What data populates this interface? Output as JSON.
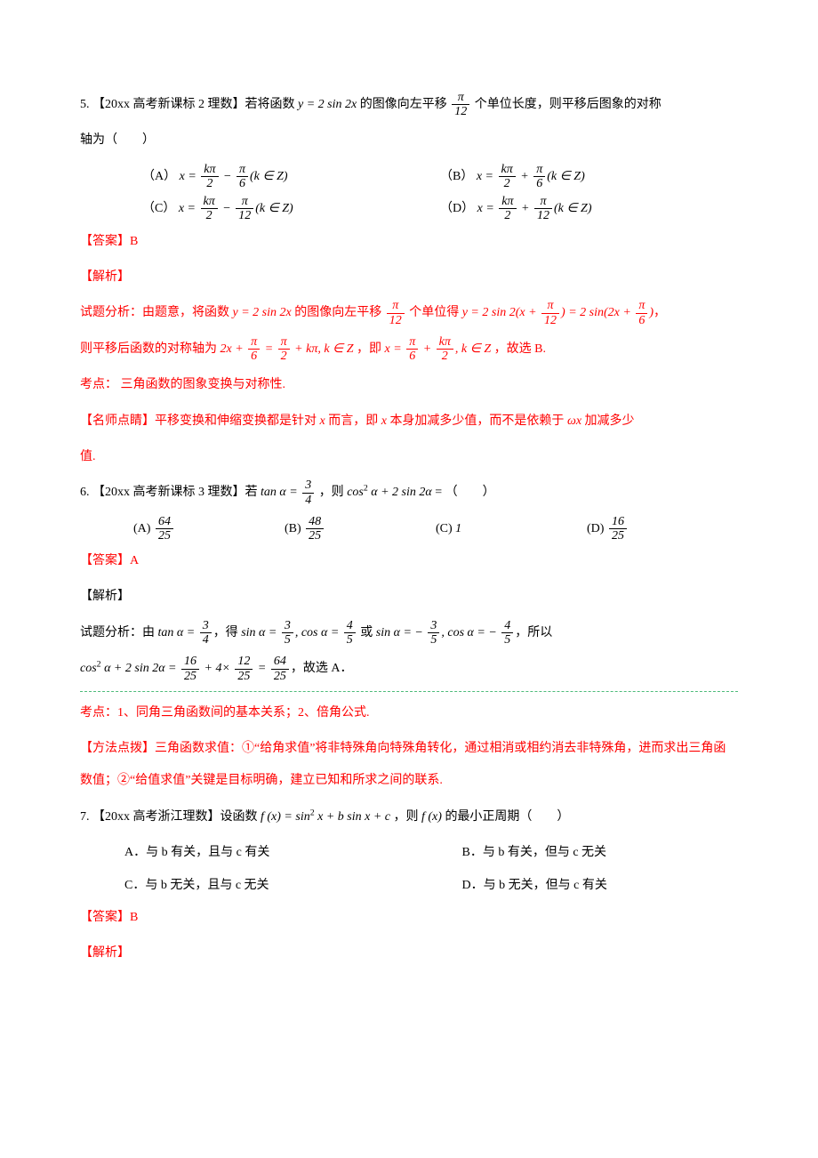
{
  "q5": {
    "source": "【20xx 高考新课标 2 理数】",
    "stem_a": "若将函数 ",
    "stem_fn": "y = 2 sin 2x",
    "stem_b": " 的图像向左平移 ",
    "stem_c": " 个单位长度，则平移后图象的对称",
    "stem_d": "轴为（　　）",
    "frac_pi_12_num": "π",
    "frac_pi_12_den": "12",
    "opts": {
      "A_label": "（A）",
      "A_math1": "x = ",
      "A_f1n": "kπ",
      "A_f1d": "2",
      "A_mid": " − ",
      "A_f2n": "π",
      "A_f2d": "6",
      "A_tail": "(k ∈ Z)",
      "B_label": "（B）",
      "B_math1": "x = ",
      "B_f1n": "kπ",
      "B_f1d": "2",
      "B_mid": " + ",
      "B_f2n": "π",
      "B_f2d": "6",
      "B_tail": "(k ∈ Z)",
      "C_label": "（C）",
      "C_math1": "x = ",
      "C_f1n": "kπ",
      "C_f1d": "2",
      "C_mid": " − ",
      "C_f2n": "π",
      "C_f2d": "12",
      "C_tail": "(k ∈ Z)",
      "D_label": "（D）",
      "D_math1": "x = ",
      "D_f1n": "kπ",
      "D_f1d": "2",
      "D_mid": " + ",
      "D_f2n": "π",
      "D_f2d": "12",
      "D_tail": "(k ∈ Z)"
    },
    "answer": "【答案】B",
    "analysis_label": "【解析】",
    "a_line1a": "试题分析：由题意，将函数 ",
    "a_fn1": "y = 2 sin 2x",
    "a_line1b": " 的图像向左平移 ",
    "a_f1n": "π",
    "a_f1d": "12",
    "a_line1c": " 个单位得 ",
    "a_fn2a": "y = 2 sin 2(x + ",
    "a_f2n": "π",
    "a_f2d": "12",
    "a_fn2b": ") = 2 sin(2x + ",
    "a_f3n": "π",
    "a_f3d": "6",
    "a_fn2c": ")",
    "a_line1d": "，",
    "a_line2a": "则平移后函数的对称轴为 ",
    "a_fn3a": "2x + ",
    "a_f4n": "π",
    "a_f4d": "6",
    "a_fn3b": " = ",
    "a_f5n": "π",
    "a_f5d": "2",
    "a_fn3c": " + kπ, k ∈ Z",
    "a_line2b": " ，即 ",
    "a_fn4a": "x = ",
    "a_f6n": "π",
    "a_f6d": "6",
    "a_fn4b": " + ",
    "a_f7n": "kπ",
    "a_f7d": "2",
    "a_fn4c": ", k ∈ Z",
    "a_line2c": " ，故选 B.",
    "point": "考点：  三角函数的图象变换与对称性.",
    "tip_a": "【名师点睛】平移变换和伸缩变换都是针对 ",
    "tip_x": "x",
    "tip_b": " 而言，即 ",
    "tip_c": " 本身加减多少值，而不是依赖于 ",
    "tip_wx": "ωx",
    "tip_d": " 加减多少",
    "tip_e": "值."
  },
  "q6": {
    "source": "【20xx 高考新课标 3 理数】",
    "stem_a": "若 ",
    "stem_fn": "tan α = ",
    "f34n": "3",
    "f34d": "4",
    "stem_b": "  ，则 ",
    "stem_c": "cos",
    "stem_sup": "2",
    "stem_d": " α + 2 sin 2α",
    "stem_e": " = （　　）",
    "opts": {
      "A_label": "(A) ",
      "A_n": "64",
      "A_d": "25",
      "B_label": "(B) ",
      "B_n": "48",
      "B_d": "25",
      "C_label": "(C) ",
      "C_val": "1",
      "D_label": "(D) ",
      "D_n": "16",
      "D_d": "25"
    },
    "answer": "【答案】A",
    "analysis_label": "【解析】",
    "a_line1_a": "试题分析：由 ",
    "a_line1_b": "tan α = ",
    "f1n": "3",
    "f1d": "4",
    "a_line1_c": "，得 ",
    "a_line1_d": "sin α = ",
    "f2n": "3",
    "f2d": "5",
    "a_line1_e": ", cos α = ",
    "f3n": "4",
    "f3d": "5",
    "a_line1_f": " 或 ",
    "a_line1_g": "sin α = − ",
    "f4n": "3",
    "f4d": "5",
    "a_line1_h": ", cos α = − ",
    "f5n": "4",
    "f5d": "5",
    "a_line1_i": "，所以",
    "a_line2_a": "cos",
    "a_sup": "2",
    "a_line2_b": " α + 2 sin 2α = ",
    "f6n": "16",
    "f6d": "25",
    "a_line2_c": " + 4× ",
    "f7n": "12",
    "f7d": "25",
    "a_line2_d": " = ",
    "f8n": "64",
    "f8d": "25",
    "a_line2_e": "，故选 A．",
    "point": "考点：1、同角三角函数间的基本关系；2、倍角公式.",
    "tip": "【方法点拨】三角函数求值：①“给角求值”将非特殊角向特殊角转化，通过相消或相约消去非特殊角，进而求出三角函数值；②“给值求值”关键是目标明确，建立已知和所求之间的联系."
  },
  "q7": {
    "source": "【20xx 高考浙江理数】",
    "stem_a": "设函数 ",
    "stem_fn_a": "f (x) = sin",
    "stem_sup": "2",
    "stem_fn_b": " x + b sin x + c",
    "stem_b": " ，则 ",
    "stem_fn_c": "f (x)",
    "stem_c": " 的最小正周期（　　）",
    "opts": {
      "A": "A．与 b 有关，且与 c 有关",
      "B": "B．与 b 有关，但与 c 无关",
      "C": "C．与 b 无关，且与 c 无关",
      "D": "D．与 b 无关，但与 c 有关"
    },
    "answer": "【答案】B",
    "analysis_label": "【解析】"
  }
}
